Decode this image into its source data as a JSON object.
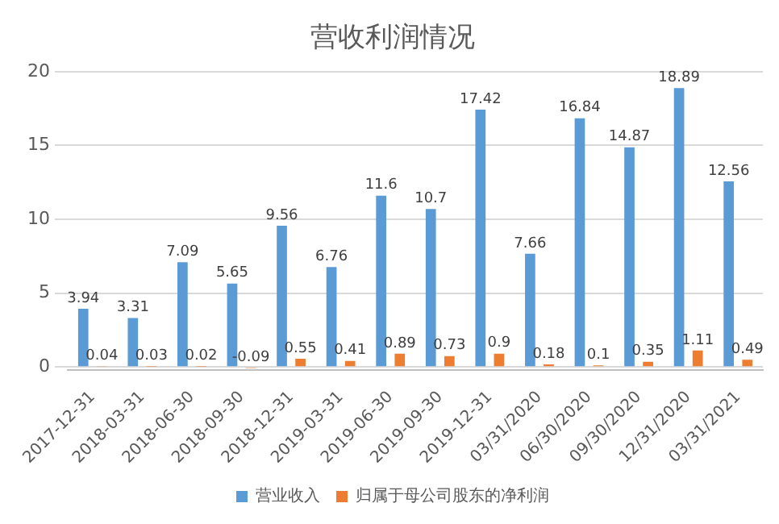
{
  "chart_data": {
    "type": "bar",
    "title": "营收利润情况",
    "categories": [
      "2017-12-31",
      "2018-03-31",
      "2018-06-30",
      "2018-09-30",
      "2018-12-31",
      "2019-03-31",
      "2019-06-30",
      "2019-09-30",
      "2019-12-31",
      "03/31/2020",
      "06/30/2020",
      "09/30/2020",
      "12/31/2020",
      "03/31/2021"
    ],
    "series": [
      {
        "name": "营业收入",
        "color": "#5b9bd5",
        "values": [
          3.94,
          3.31,
          7.09,
          5.65,
          9.56,
          6.76,
          11.6,
          10.7,
          17.42,
          7.66,
          16.84,
          14.87,
          18.89,
          12.56
        ]
      },
      {
        "name": "归属于母公司股东的净利润",
        "color": "#ed7d31",
        "values": [
          0.04,
          0.03,
          0.02,
          -0.09,
          0.55,
          0.41,
          0.89,
          0.73,
          0.9,
          0.18,
          0.1,
          0.35,
          1.11,
          0.49
        ]
      }
    ],
    "ylim": [
      -0.2,
      20
    ],
    "yticks": [
      0,
      5,
      10,
      15,
      20
    ],
    "grid": "y",
    "legend": "bottom",
    "data_labels": true
  }
}
